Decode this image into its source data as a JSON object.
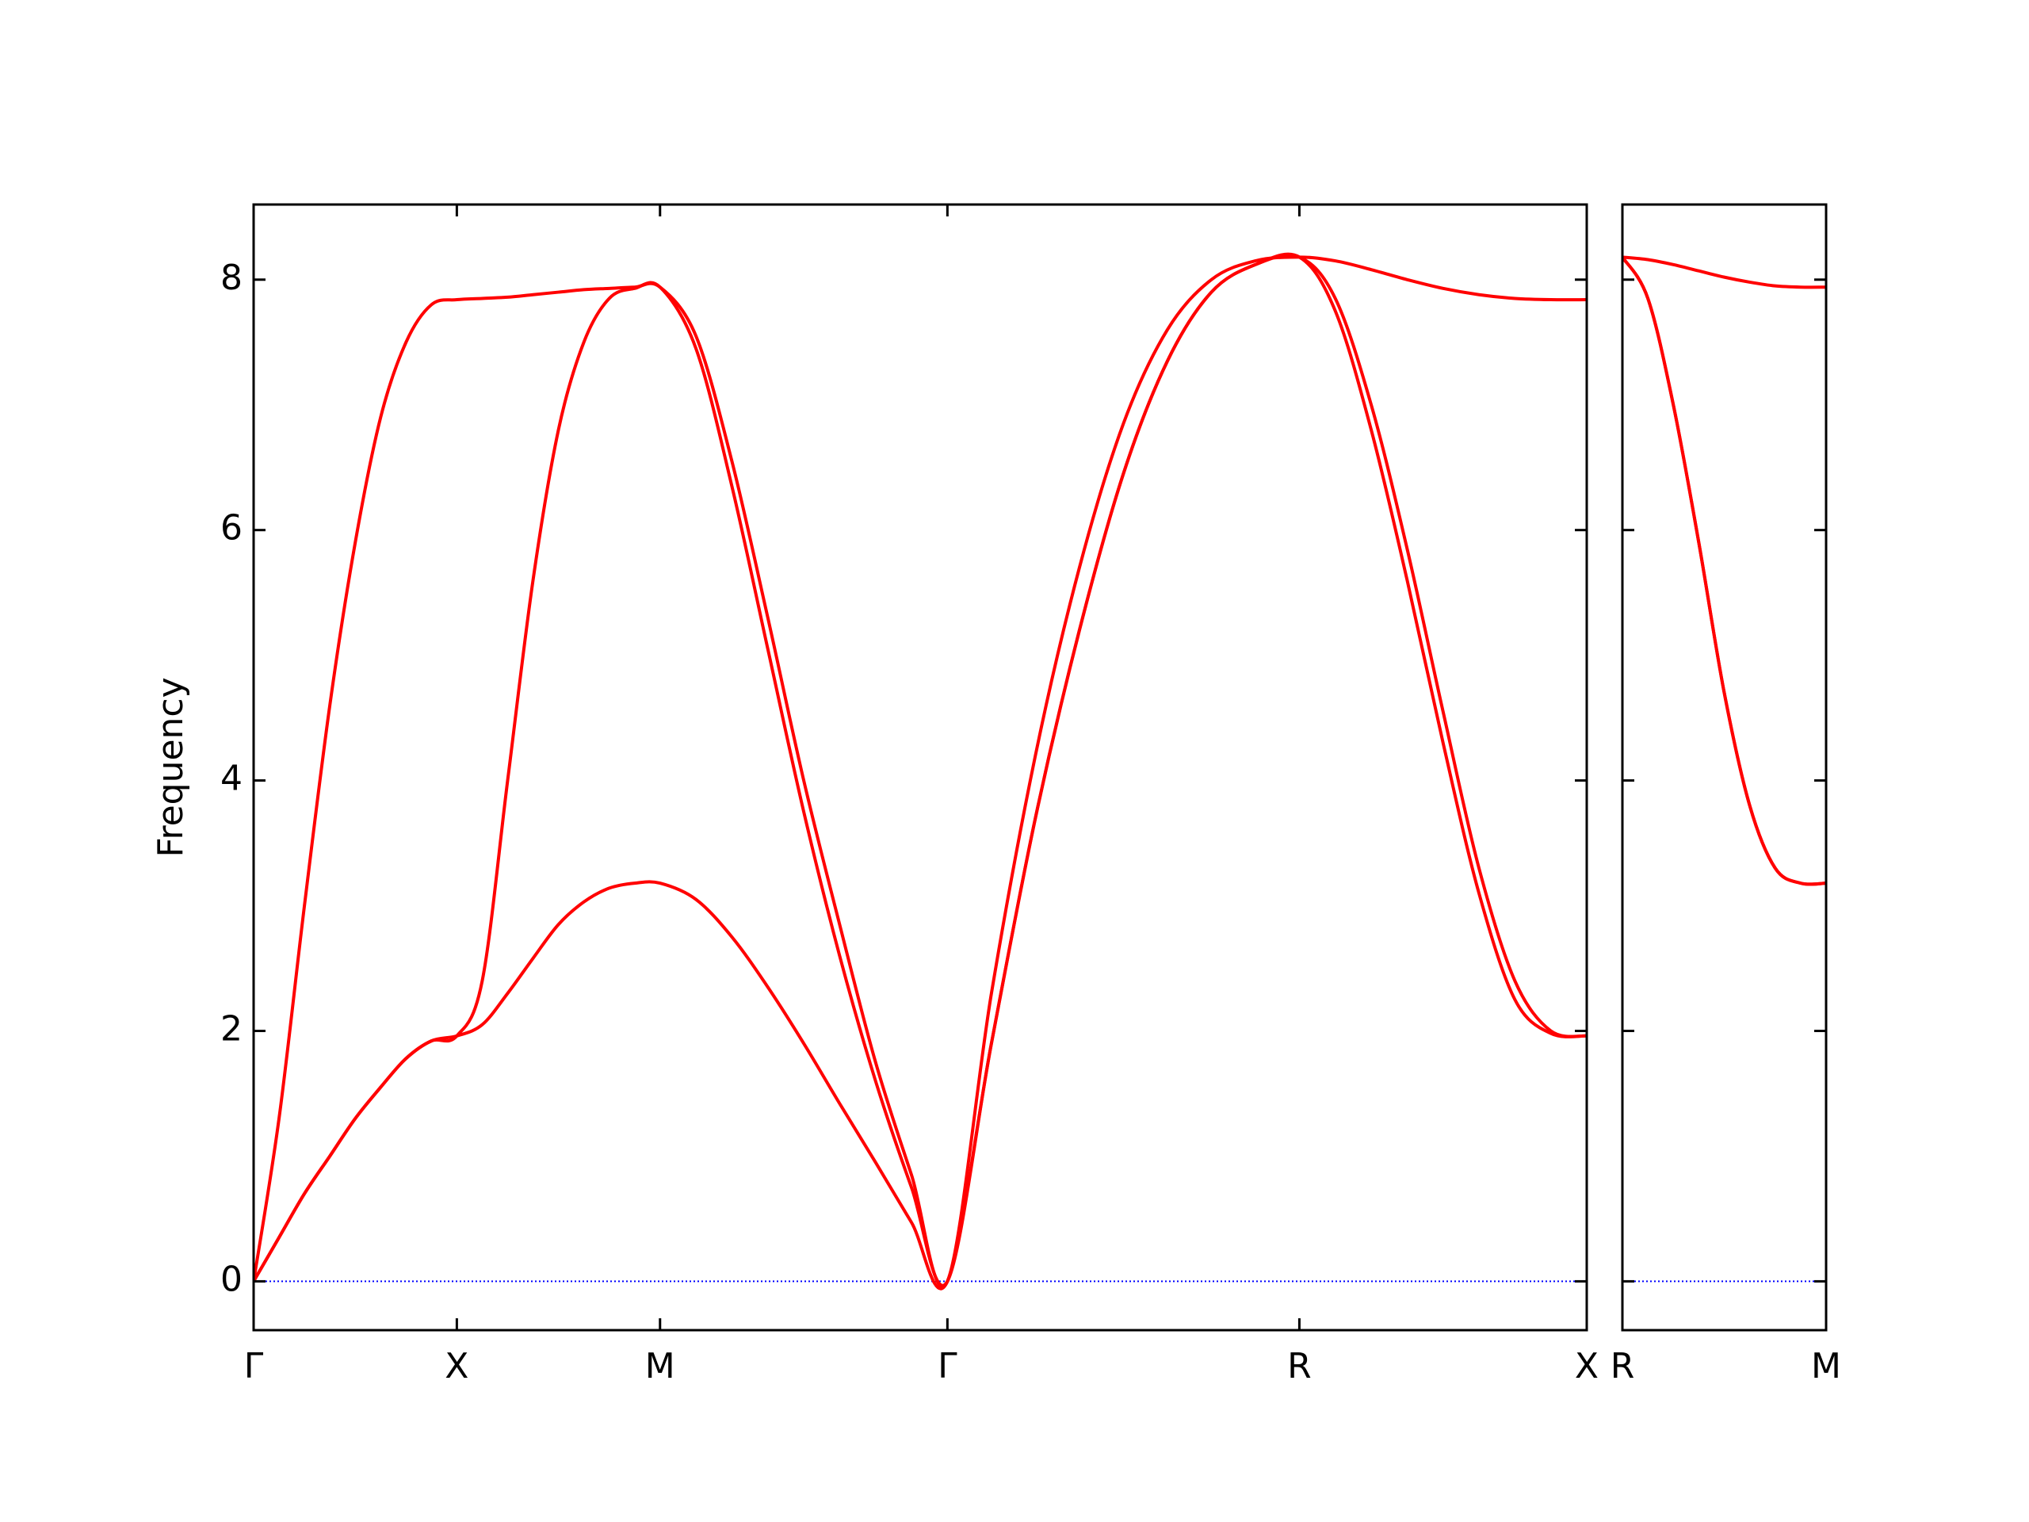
{
  "chart_data": [
    {
      "type": "line",
      "ylabel": "Frequency",
      "x": [
        0,
        0.0625,
        0.125,
        0.1875,
        0.25,
        0.3125,
        0.375,
        0.4375,
        0.5,
        0.5625,
        0.625,
        0.6875,
        0.75,
        0.8125,
        0.875,
        0.9375,
        1.0,
        1.0884,
        1.1768,
        1.2652,
        1.3536,
        1.4419,
        1.5303,
        1.6187,
        1.7071,
        1.8154,
        1.9236,
        2.0319,
        2.1401,
        2.2484,
        2.3566,
        2.4649,
        2.5731,
        2.6615,
        2.7499,
        2.8383,
        2.9267,
        3.015,
        3.1034,
        3.1918,
        3.2802
      ],
      "series": [
        {
          "color": "#ff0000",
          "values": [
            0,
            0.35,
            0.7,
            1.0,
            1.3,
            1.55,
            1.78,
            1.92,
            1.96,
            2.05,
            2.3,
            2.58,
            2.85,
            3.03,
            3.14,
            3.18,
            3.18,
            3.05,
            2.75,
            2.35,
            1.9,
            1.42,
            0.95,
            0.47,
            0,
            1.9,
            3.7,
            5.2,
            6.45,
            7.35,
            7.9,
            8.12,
            8.18,
            7.75,
            6.8,
            5.6,
            4.3,
            3.1,
            2.25,
            1.98,
            1.96
          ]
        },
        {
          "color": "#ff0000",
          "values": [
            0,
            0.35,
            0.7,
            1.0,
            1.3,
            1.55,
            1.78,
            1.92,
            1.96,
            2.4,
            4.0,
            5.6,
            6.8,
            7.5,
            7.85,
            7.93,
            7.94,
            7.45,
            6.35,
            5.05,
            3.75,
            2.6,
            1.6,
            0.75,
            0,
            1.9,
            3.7,
            5.2,
            6.45,
            7.35,
            7.9,
            8.12,
            8.18,
            7.85,
            7.0,
            5.85,
            4.55,
            3.3,
            2.4,
            2.0,
            1.96
          ]
        },
        {
          "color": "#ff0000",
          "values": [
            0,
            1.3,
            3.0,
            4.6,
            5.9,
            6.9,
            7.5,
            7.8,
            7.84,
            7.85,
            7.86,
            7.88,
            7.9,
            7.92,
            7.93,
            7.94,
            7.94,
            7.55,
            6.55,
            5.3,
            4.0,
            2.85,
            1.75,
            0.85,
            0,
            2.3,
            4.2,
            5.7,
            6.85,
            7.6,
            8.0,
            8.15,
            8.18,
            8.15,
            8.08,
            8.0,
            7.93,
            7.88,
            7.85,
            7.84,
            7.84
          ]
        }
      ],
      "xlim": [
        0,
        3.2802
      ],
      "xticks": [
        {
          "value": 0,
          "label": "Γ"
        },
        {
          "value": 0.5,
          "label": "X"
        },
        {
          "value": 1.0,
          "label": "M"
        },
        {
          "value": 1.7071,
          "label": "Γ"
        },
        {
          "value": 2.5731,
          "label": "R"
        },
        {
          "value": 3.2802,
          "label": "X"
        }
      ],
      "ylim": [
        -0.39,
        8.6
      ],
      "yticks": [
        0,
        2,
        4,
        6,
        8
      ],
      "zero_line": {
        "value": 0,
        "color": "#0000ff"
      }
    },
    {
      "type": "line",
      "x": [
        0,
        0.0884,
        0.1768,
        0.2652,
        0.3536,
        0.4419,
        0.5303,
        0.6187,
        0.7071
      ],
      "series": [
        {
          "color": "#ff0000",
          "values": [
            8.18,
            7.85,
            7.0,
            5.9,
            4.7,
            3.8,
            3.3,
            3.18,
            3.18
          ]
        },
        {
          "color": "#ff0000",
          "values": [
            8.18,
            7.85,
            7.0,
            5.9,
            4.7,
            3.8,
            3.3,
            3.18,
            3.18
          ]
        },
        {
          "color": "#ff0000",
          "values": [
            8.18,
            8.16,
            8.12,
            8.07,
            8.02,
            7.98,
            7.95,
            7.94,
            7.94
          ]
        }
      ],
      "xlim": [
        0,
        0.7071
      ],
      "xticks": [
        {
          "value": 0,
          "label": "R"
        },
        {
          "value": 0.7071,
          "label": "M"
        }
      ],
      "ylim": [
        -0.39,
        8.6
      ],
      "yticks": [
        0,
        2,
        4,
        6,
        8
      ],
      "ytick_labels": false,
      "zero_line": {
        "value": 0,
        "color": "#0000ff"
      }
    }
  ]
}
